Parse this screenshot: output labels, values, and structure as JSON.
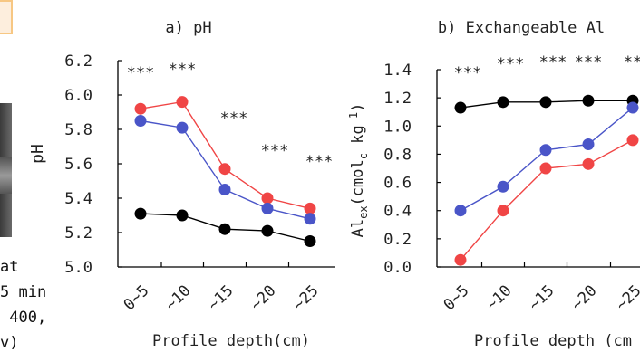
{
  "side_fragment": {
    "lines": [
      "at",
      "5 min",
      " 400,",
      "v)"
    ],
    "tab_color": "#f7c783",
    "tab_fill": "#fdeedd",
    "photo_color": "#4a4a4a"
  },
  "chart_data": [
    {
      "type": "line",
      "title": "a) pH",
      "xlabel": "Profile depth(cm)",
      "ylabel": "pH",
      "categories": [
        "0~5",
        "~10",
        "~15",
        "~20",
        "~25"
      ],
      "ylim": [
        5.0,
        6.2
      ],
      "yticks": [
        "5.0",
        "5.2",
        "5.4",
        "5.6",
        "5.8",
        "6.0",
        "6.2"
      ],
      "grid": false,
      "significance": [
        "***",
        "***",
        "***",
        "***",
        "***"
      ],
      "series": [
        {
          "color": "#f04545",
          "values": [
            5.92,
            5.96,
            5.57,
            5.4,
            5.34
          ]
        },
        {
          "color": "#4a55c8",
          "values": [
            5.85,
            5.81,
            5.45,
            5.34,
            5.28
          ]
        },
        {
          "color": "#000000",
          "values": [
            5.31,
            5.3,
            5.22,
            5.21,
            5.15
          ]
        }
      ]
    },
    {
      "type": "line",
      "title": "b)  Exchangeable Al",
      "xlabel": "Profile depth (cm",
      "ylabel": "Al_ex(cmol_c kg^-1)",
      "ylabel_parts": {
        "a": "Al",
        "b": "ex",
        "c": "(cmol",
        "d": "c",
        "e": " kg",
        "f": "-1",
        "g": ")"
      },
      "categories": [
        "0~5",
        "~10",
        "~15",
        "~20",
        "~25"
      ],
      "ylim": [
        0.0,
        1.4
      ],
      "yticks": [
        "0.0",
        "0.2",
        "0.4",
        "0.6",
        "0.8",
        "1.0",
        "1.2",
        "1.4"
      ],
      "grid": false,
      "significance": [
        "***",
        "***",
        "***",
        "***",
        "**"
      ],
      "series": [
        {
          "color": "#000000",
          "values": [
            1.13,
            1.17,
            1.17,
            1.18,
            1.18
          ]
        },
        {
          "color": "#4a55c8",
          "values": [
            0.4,
            0.57,
            0.83,
            0.87,
            1.13
          ]
        },
        {
          "color": "#f04545",
          "values": [
            0.05,
            0.4,
            0.7,
            0.73,
            0.9
          ]
        }
      ]
    }
  ]
}
